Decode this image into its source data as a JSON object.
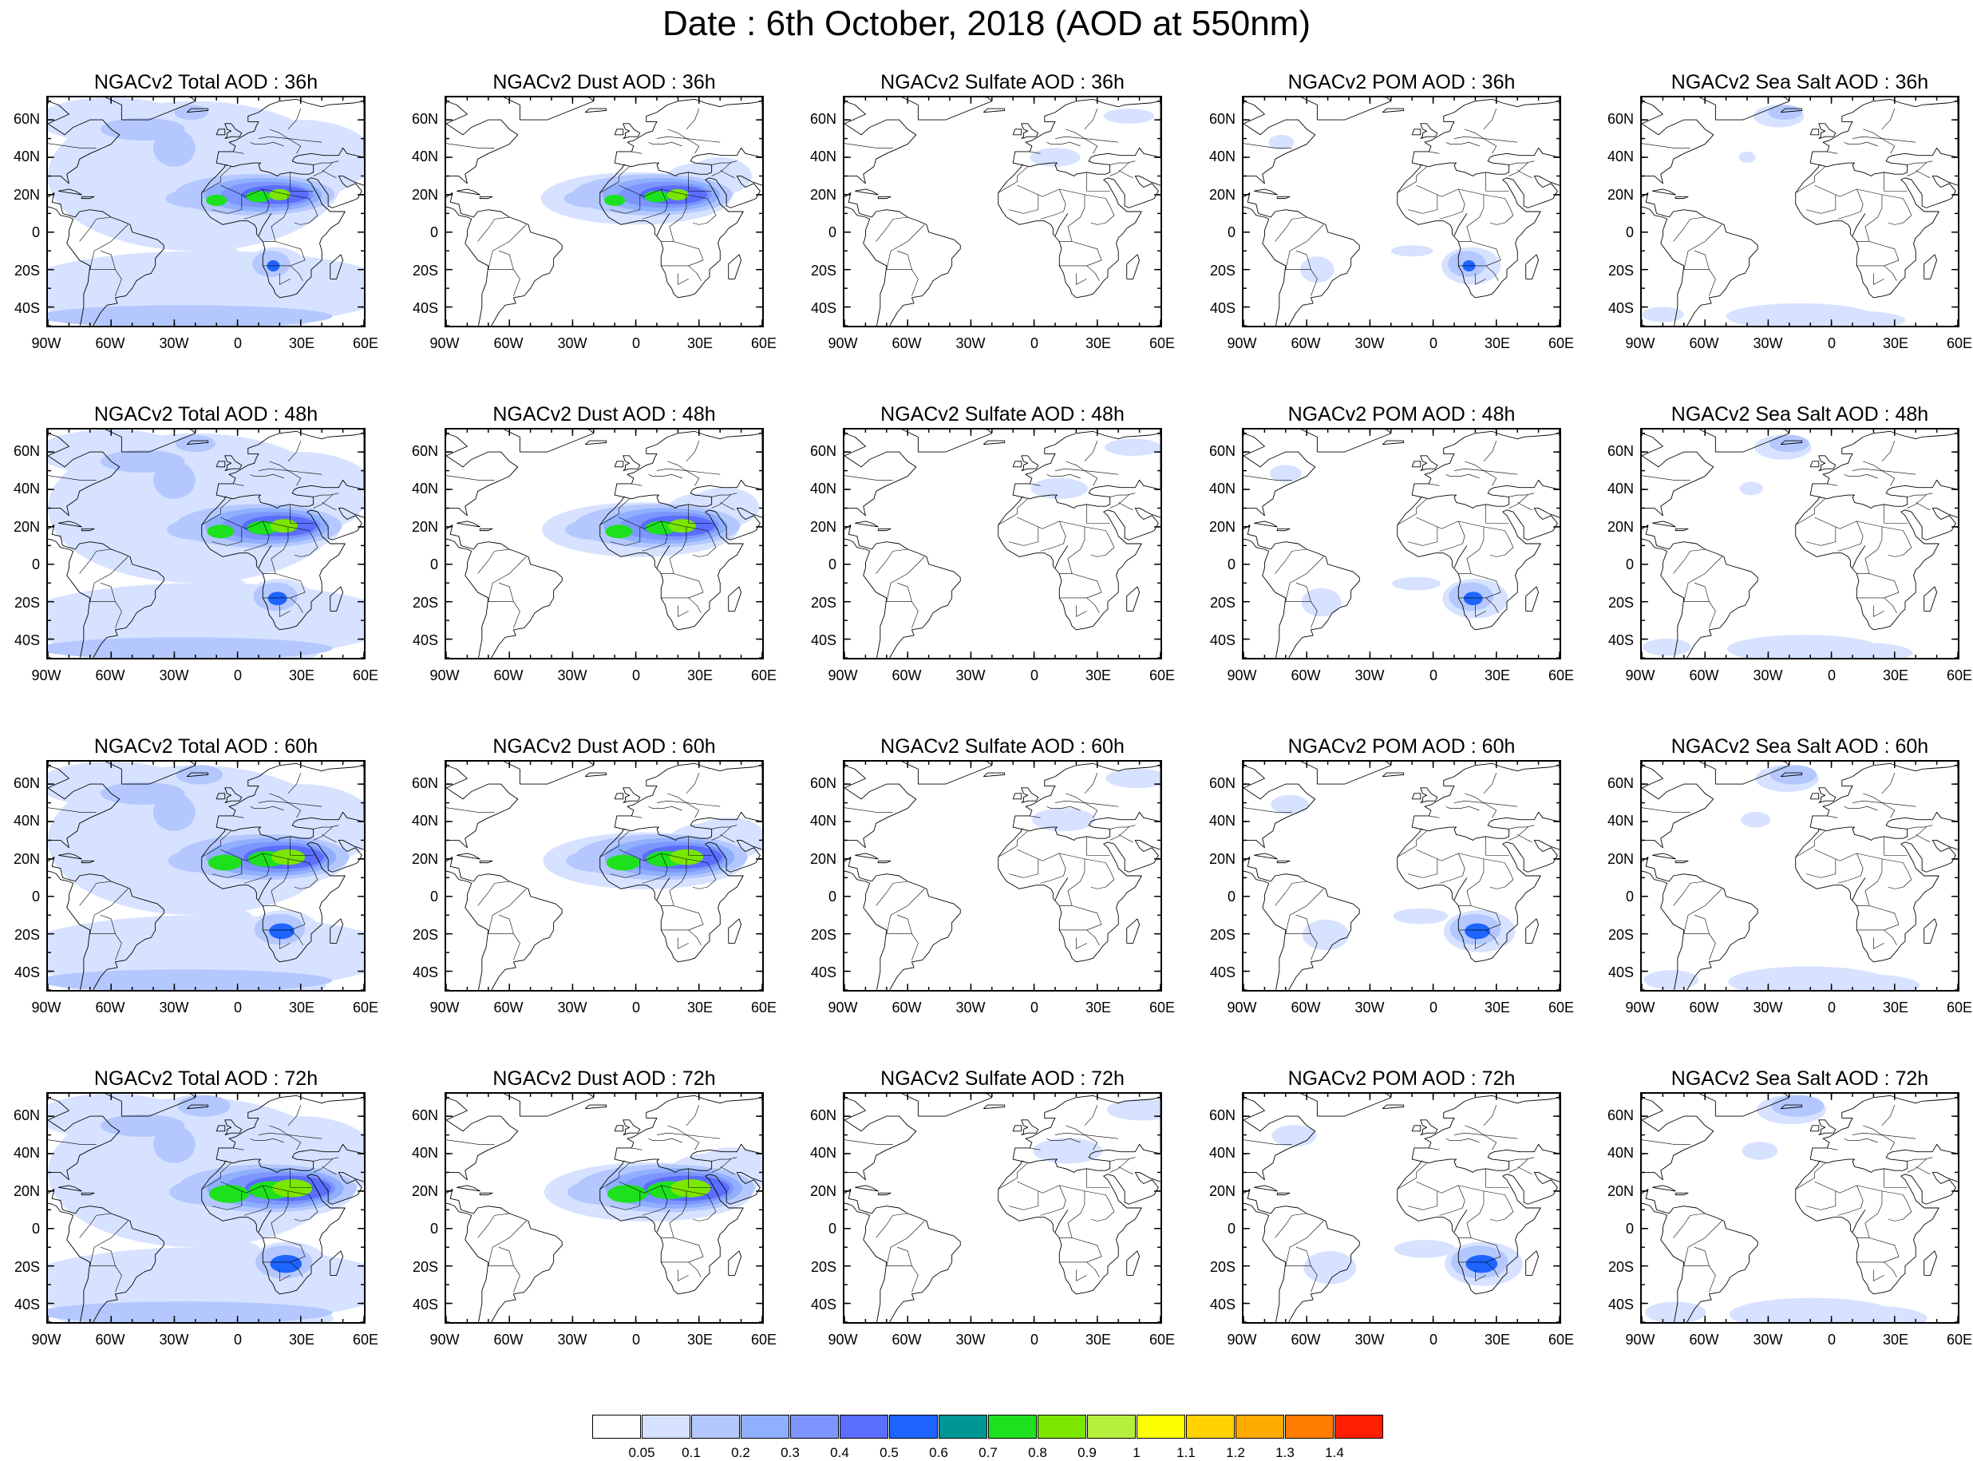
{
  "title": "Date : 6th October, 2018 (AOD at 550nm)",
  "lon_ticks": [
    "90W",
    "60W",
    "30W",
    "0",
    "30E",
    "60E"
  ],
  "lat_ticks": [
    "60N",
    "40N",
    "20N",
    "0",
    "20S",
    "40S"
  ],
  "lon_range": [
    -90,
    60
  ],
  "lat_range": [
    -50,
    72
  ],
  "species_order": [
    "Total",
    "Dust",
    "Sulfate",
    "POM",
    "Sea Salt"
  ],
  "panels": [
    {
      "title": "NGACv2 Total AOD : 36h",
      "species": "Total",
      "hour": 36
    },
    {
      "title": "NGACv2 Dust AOD : 36h",
      "species": "Dust",
      "hour": 36
    },
    {
      "title": "NGACv2 Sulfate AOD : 36h",
      "species": "Sulfate",
      "hour": 36
    },
    {
      "title": "NGACv2 POM AOD : 36h",
      "species": "POM",
      "hour": 36
    },
    {
      "title": "NGACv2 Sea Salt AOD : 36h",
      "species": "Sea Salt",
      "hour": 36
    },
    {
      "title": "NGACv2 Total AOD : 48h",
      "species": "Total",
      "hour": 48
    },
    {
      "title": "NGACv2 Dust AOD : 48h",
      "species": "Dust",
      "hour": 48
    },
    {
      "title": "NGACv2 Sulfate AOD : 48h",
      "species": "Sulfate",
      "hour": 48
    },
    {
      "title": "NGACv2 POM AOD : 48h",
      "species": "POM",
      "hour": 48
    },
    {
      "title": "NGACv2 Sea Salt AOD : 48h",
      "species": "Sea Salt",
      "hour": 48
    },
    {
      "title": "NGACv2 Total AOD : 60h",
      "species": "Total",
      "hour": 60
    },
    {
      "title": "NGACv2 Dust AOD : 60h",
      "species": "Dust",
      "hour": 60
    },
    {
      "title": "NGACv2 Sulfate AOD : 60h",
      "species": "Sulfate",
      "hour": 60
    },
    {
      "title": "NGACv2 POM AOD : 60h",
      "species": "POM",
      "hour": 60
    },
    {
      "title": "NGACv2 Sea Salt AOD : 60h",
      "species": "Sea Salt",
      "hour": 60
    },
    {
      "title": "NGACv2 Total AOD : 72h",
      "species": "Total",
      "hour": 72
    },
    {
      "title": "NGACv2 Dust AOD : 72h",
      "species": "Dust",
      "hour": 72
    },
    {
      "title": "NGACv2 Sulfate AOD : 72h",
      "species": "Sulfate",
      "hour": 72
    },
    {
      "title": "NGACv2 POM AOD : 72h",
      "species": "POM",
      "hour": 72
    },
    {
      "title": "NGACv2 Sea Salt  AOD : 72h",
      "species": "Sea Salt",
      "hour": 72
    }
  ],
  "colorbar": {
    "labels": [
      "0.05",
      "0.1",
      "0.2",
      "0.3",
      "0.4",
      "0.5",
      "0.6",
      "0.7",
      "0.8",
      "0.9",
      "1",
      "1.1",
      "1.2",
      "1.3",
      "1.4"
    ],
    "colors": [
      "#ffffff",
      "#d6e2ff",
      "#b4c8ff",
      "#8fb0ff",
      "#7d96ff",
      "#5a6eff",
      "#1e64ff",
      "#009696",
      "#1ee11e",
      "#7be600",
      "#b4f03c",
      "#ffff00",
      "#ffd200",
      "#ffaa00",
      "#ff7d00",
      "#ff1e00"
    ]
  },
  "map_style": {
    "coastline_color": "#000000",
    "background": "#ffffff"
  }
}
